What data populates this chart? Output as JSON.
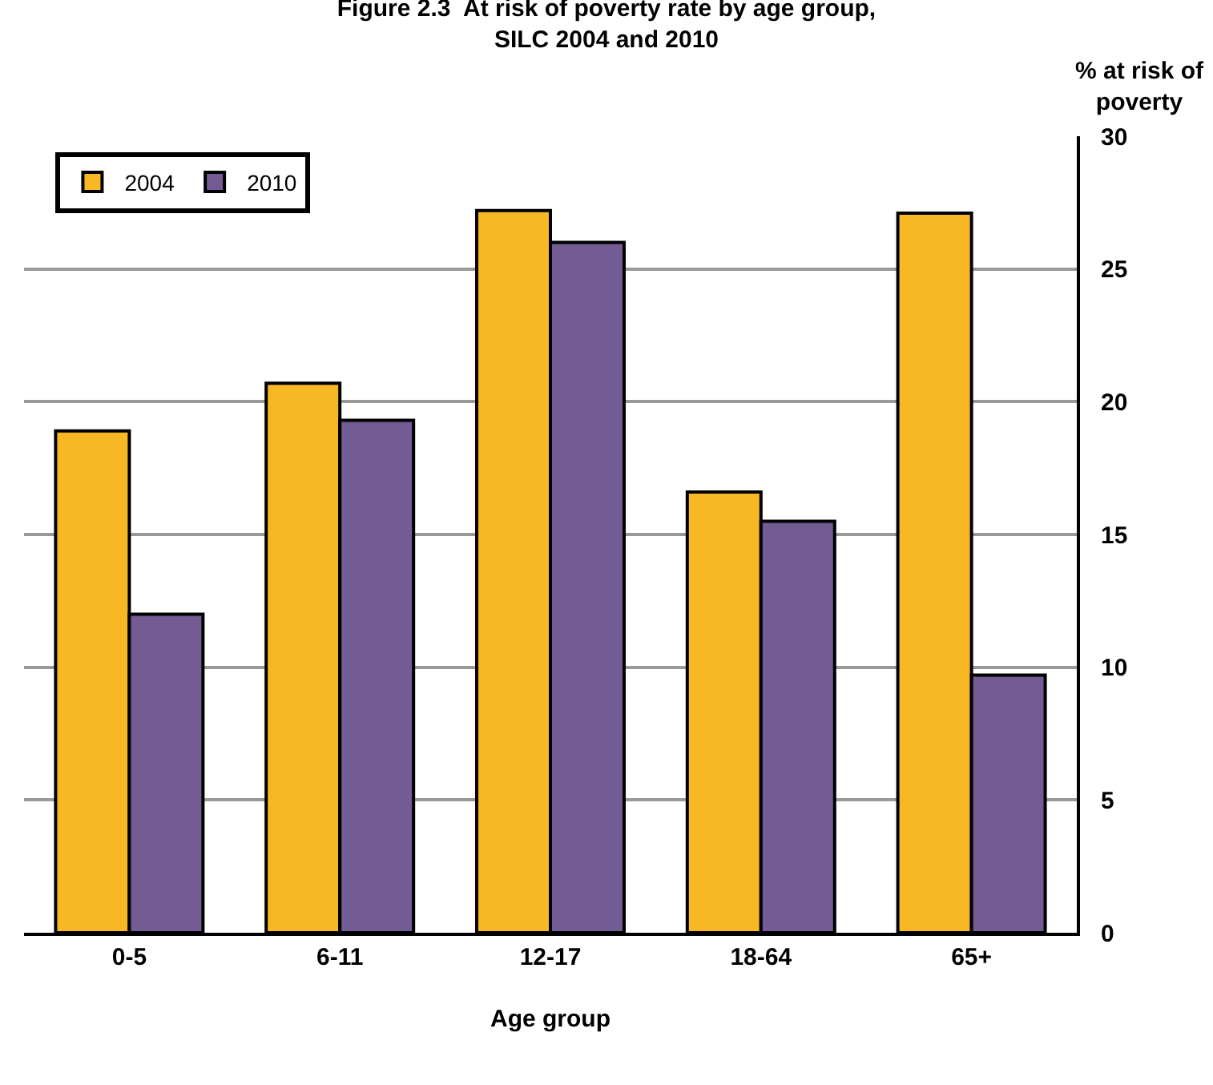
{
  "chart_data": {
    "type": "bar",
    "title": "Figure 2.3  At risk of poverty rate by age group,\nSILC 2004 and 2010",
    "xlabel": "Age group",
    "ylabel": "% at risk of\npoverty",
    "categories": [
      "0-5",
      "6-11",
      "12-17",
      "18-64",
      "65+"
    ],
    "series": [
      {
        "name": "2004",
        "color": "#f8b823",
        "values": [
          18.9,
          20.7,
          27.2,
          16.6,
          27.1
        ]
      },
      {
        "name": "2010",
        "color": "#735b94",
        "values": [
          12.0,
          19.3,
          26.0,
          15.5,
          9.7
        ]
      }
    ],
    "ylim": [
      0,
      30
    ],
    "yticks": [
      0,
      5,
      10,
      15,
      20,
      25,
      30
    ],
    "grid": "y",
    "legend": "top left"
  }
}
